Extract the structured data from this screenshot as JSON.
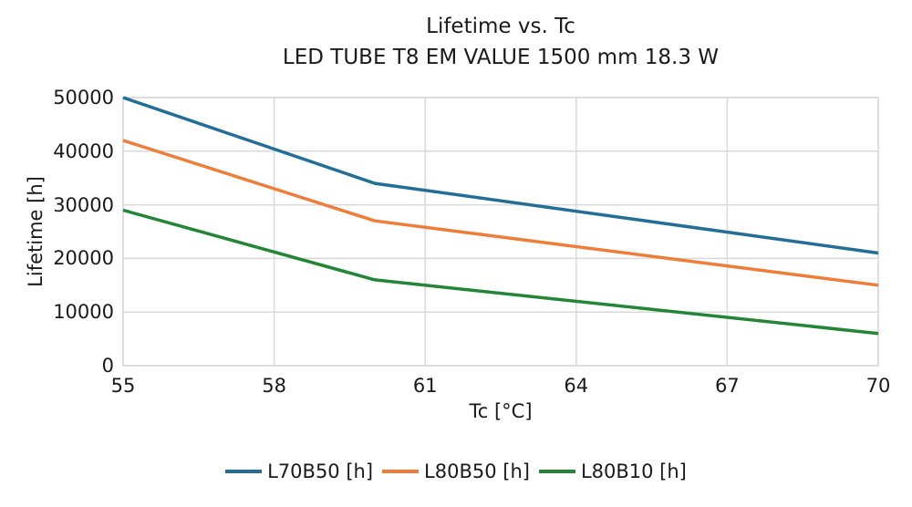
{
  "chart_data": {
    "type": "line",
    "title": "Lifetime vs. Tc",
    "subtitle": "LED TUBE T8 EM VALUE 1500 mm 18.3 W",
    "xlabel": "Tc [°C]",
    "ylabel": "Lifetime [h]",
    "x": [
      55,
      60,
      70
    ],
    "series": [
      {
        "name": "L70B50 [h]",
        "color": "#226e96",
        "values": [
          50000,
          34000,
          21000
        ]
      },
      {
        "name": "L80B50 [h]",
        "color": "#ee7d3a",
        "values": [
          42000,
          27000,
          15000
        ]
      },
      {
        "name": "L80B10 [h]",
        "color": "#228636",
        "values": [
          29000,
          16000,
          6000
        ]
      }
    ],
    "xlim": [
      55,
      70
    ],
    "ylim": [
      0,
      50000
    ],
    "x_ticks": [
      55,
      58,
      61,
      64,
      67,
      70
    ],
    "y_ticks": [
      0,
      10000,
      20000,
      30000,
      40000,
      50000
    ],
    "grid": true,
    "grid_color": "#d9d9d9",
    "legend_position": "bottom",
    "line_width": 3.5,
    "background": "#ffffff",
    "text_color": "#1a1a1a"
  }
}
